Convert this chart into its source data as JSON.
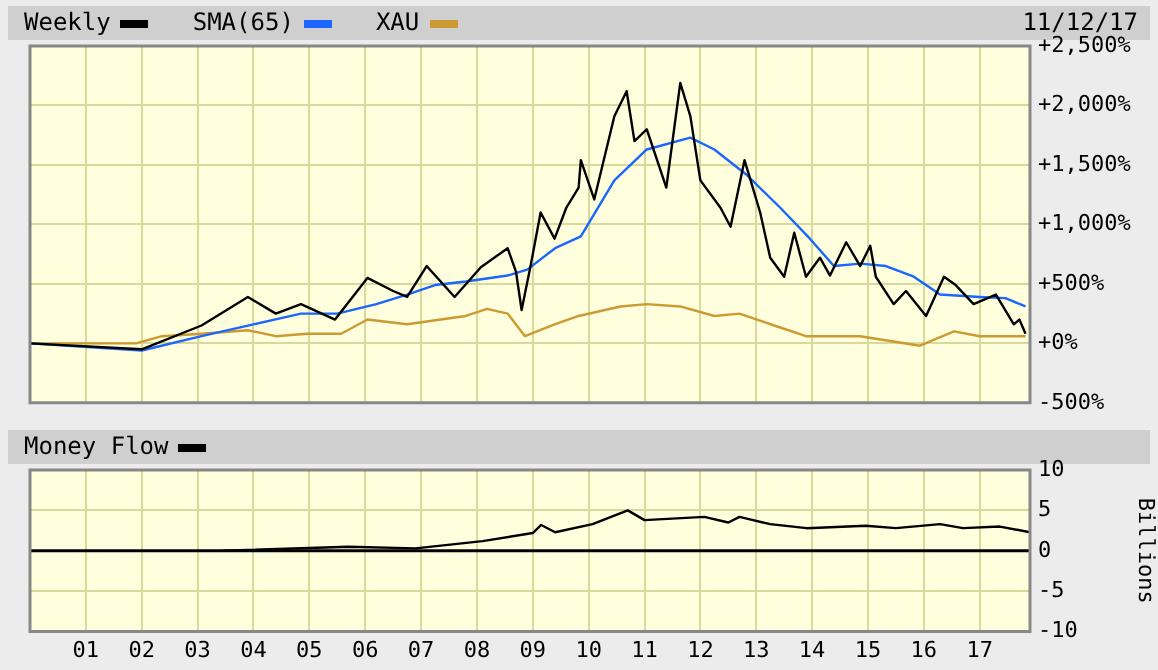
{
  "chart_data": [
    {
      "type": "line",
      "annotations": [
        "11/12/17"
      ],
      "legend": "top left",
      "grid": true,
      "tick_labels": "y",
      "xlim": [
        2000.0,
        2017.9
      ],
      "xticks": [
        {
          "value": 2001,
          "label": null
        },
        {
          "value": 2002,
          "label": null
        },
        {
          "value": 2003,
          "label": null
        },
        {
          "value": 2004,
          "label": null
        },
        {
          "value": 2005,
          "label": null
        },
        {
          "value": 2006,
          "label": null
        },
        {
          "value": 2007,
          "label": null
        },
        {
          "value": 2008,
          "label": null
        },
        {
          "value": 2009,
          "label": null
        },
        {
          "value": 2010,
          "label": null
        },
        {
          "value": 2011,
          "label": null
        },
        {
          "value": 2012,
          "label": null
        },
        {
          "value": 2013,
          "label": null
        },
        {
          "value": 2014,
          "label": null
        },
        {
          "value": 2015,
          "label": null
        },
        {
          "value": 2016,
          "label": null
        },
        {
          "value": 2017,
          "label": null
        }
      ],
      "ylim": [
        -500,
        2500
      ],
      "yticks": [
        {
          "value": -500,
          "label": "-500%"
        },
        {
          "value": 0,
          "label": "+0%"
        },
        {
          "value": 500,
          "label": "+500%"
        },
        {
          "value": 1000,
          "label": "+1,000%"
        },
        {
          "value": 1500,
          "label": "+1,500%"
        },
        {
          "value": 2000,
          "label": "+2,000%"
        },
        {
          "value": 2500,
          "label": "+2,500%"
        }
      ],
      "series": [
        {
          "name": "Weekly",
          "color": "#000000",
          "x": [
            2000.0,
            2002.0,
            2003.07,
            2003.9,
            2004.4,
            2004.85,
            2005.46,
            2006.04,
            2006.5,
            2006.75,
            2007.1,
            2007.6,
            2008.07,
            2008.55,
            2008.7,
            2008.8,
            2008.96,
            2009.14,
            2009.39,
            2009.6,
            2009.82,
            2009.86,
            2010.1,
            2010.46,
            2010.68,
            2010.82,
            2011.04,
            2011.39,
            2011.64,
            2011.82,
            2012.0,
            2012.36,
            2012.54,
            2012.79,
            2013.07,
            2013.25,
            2013.5,
            2013.68,
            2013.89,
            2014.14,
            2014.32,
            2014.61,
            2014.86,
            2015.04,
            2015.14,
            2015.46,
            2015.68,
            2016.04,
            2016.36,
            2016.57,
            2016.89,
            2017.29,
            2017.61,
            2017.71,
            2017.82
          ],
          "values": [
            0,
            -50,
            150,
            390,
            250,
            330,
            200,
            550,
            440,
            390,
            650,
            390,
            640,
            800,
            600,
            280,
            650,
            1100,
            880,
            1140,
            1310,
            1540,
            1210,
            1910,
            2120,
            1700,
            1800,
            1310,
            2190,
            1910,
            1370,
            1140,
            980,
            1540,
            1100,
            720,
            560,
            930,
            560,
            720,
            570,
            850,
            650,
            820,
            560,
            330,
            440,
            230,
            560,
            490,
            330,
            410,
            160,
            200,
            80
          ]
        },
        {
          "name": "SMA(65)",
          "color": "#1a66ff",
          "x": [
            2000.0,
            2002.0,
            2003.07,
            2004.0,
            2004.85,
            2005.5,
            2006.2,
            2006.75,
            2007.25,
            2007.8,
            2008.55,
            2008.9,
            2009.4,
            2009.86,
            2010.46,
            2011.04,
            2011.82,
            2012.25,
            2012.82,
            2013.43,
            2013.96,
            2014.39,
            2014.86,
            2015.32,
            2015.82,
            2016.29,
            2017.0,
            2017.46,
            2017.82
          ],
          "values": [
            0,
            -60,
            60,
            160,
            250,
            250,
            330,
            410,
            490,
            520,
            570,
            620,
            800,
            900,
            1370,
            1630,
            1730,
            1630,
            1420,
            1140,
            880,
            650,
            670,
            650,
            560,
            410,
            390,
            380,
            310
          ]
        },
        {
          "name": "XAU",
          "color": "#cc9933",
          "x": [
            2000.0,
            2001.9,
            2002.36,
            2003.07,
            2003.9,
            2004.4,
            2004.96,
            2005.57,
            2006.04,
            2006.75,
            2007.8,
            2008.18,
            2008.55,
            2008.86,
            2009.39,
            2009.82,
            2010.57,
            2011.04,
            2011.64,
            2012.25,
            2012.7,
            2013.32,
            2013.89,
            2014.86,
            2015.93,
            2016.54,
            2017.0,
            2017.82
          ],
          "values": [
            0,
            0,
            60,
            80,
            110,
            60,
            80,
            80,
            200,
            160,
            230,
            290,
            250,
            60,
            160,
            230,
            310,
            330,
            310,
            230,
            250,
            150,
            60,
            60,
            -20,
            100,
            60,
            60
          ]
        }
      ]
    },
    {
      "type": "line",
      "legend": "top left",
      "grid": true,
      "ylabel": "Billions",
      "xlim": [
        2000.0,
        2017.9
      ],
      "xticks": [
        {
          "value": 2001,
          "label": "01"
        },
        {
          "value": 2002,
          "label": "02"
        },
        {
          "value": 2003,
          "label": "03"
        },
        {
          "value": 2004,
          "label": "04"
        },
        {
          "value": 2005,
          "label": "05"
        },
        {
          "value": 2006,
          "label": "06"
        },
        {
          "value": 2007,
          "label": "07"
        },
        {
          "value": 2008,
          "label": "08"
        },
        {
          "value": 2009,
          "label": "09"
        },
        {
          "value": 2010,
          "label": "10"
        },
        {
          "value": 2011,
          "label": "11"
        },
        {
          "value": 2012,
          "label": "12"
        },
        {
          "value": 2013,
          "label": "13"
        },
        {
          "value": 2014,
          "label": "14"
        },
        {
          "value": 2015,
          "label": "15"
        },
        {
          "value": 2016,
          "label": "16"
        },
        {
          "value": 2017,
          "label": "17"
        }
      ],
      "ylim": [
        -10,
        10
      ],
      "yticks": [
        -10,
        -5,
        0,
        5,
        10
      ],
      "ref_lines": [
        {
          "axis": "y",
          "value": 0,
          "color": "#000000"
        }
      ],
      "series": [
        {
          "name": "Money Flow",
          "color": "#000000",
          "x": [
            2003.46,
            2005.7,
            2006.9,
            2008.1,
            2009.0,
            2009.15,
            2009.4,
            2010.07,
            2010.7,
            2011.0,
            2012.07,
            2012.5,
            2012.7,
            2013.25,
            2013.9,
            2014.96,
            2015.5,
            2016.29,
            2016.7,
            2017.36,
            2017.9
          ],
          "values": [
            0,
            0.5,
            0.3,
            1.2,
            2.2,
            3.2,
            2.3,
            3.3,
            5.0,
            3.8,
            4.2,
            3.5,
            4.2,
            3.3,
            2.8,
            3.1,
            2.8,
            3.3,
            2.8,
            3.0,
            2.3
          ]
        }
      ]
    }
  ]
}
